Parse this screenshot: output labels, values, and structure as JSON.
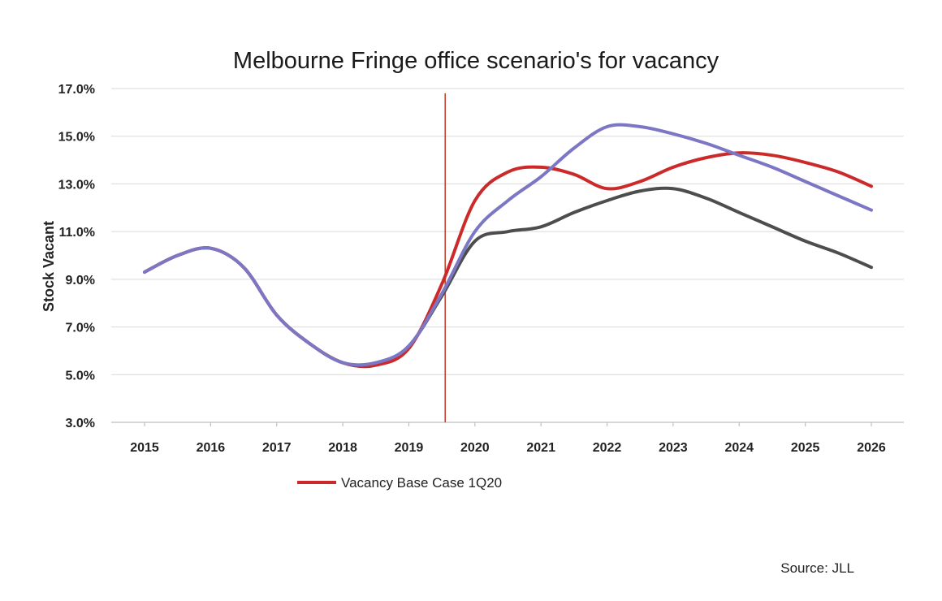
{
  "chart_data": {
    "type": "line",
    "title": "Melbourne Fringe office scenario's for vacancy",
    "xlabel": "",
    "ylabel": "Stock Vacant",
    "categories": [
      "2015",
      "2016",
      "2017",
      "2018",
      "2019",
      "2020",
      "2021",
      "2022",
      "2023",
      "2024",
      "2025",
      "2026"
    ],
    "y_ticks": [
      "3.0%",
      "5.0%",
      "7.0%",
      "9.0%",
      "11.0%",
      "13.0%",
      "15.0%",
      "17.0%"
    ],
    "ylim": [
      3.0,
      17.0
    ],
    "grid": true,
    "vertical_marker_x": 2019.55,
    "series": [
      {
        "name": "Vacancy Base Case 1Q20",
        "color": "#cc2a2a",
        "x": [
          2015,
          2015.5,
          2016,
          2016.5,
          2017,
          2017.5,
          2018,
          2018.5,
          2019,
          2019.5,
          2020,
          2020.5,
          2021,
          2021.5,
          2022,
          2022.5,
          2023,
          2023.5,
          2024,
          2024.5,
          2025,
          2025.5,
          2026
        ],
        "values": [
          9.3,
          10.0,
          10.3,
          9.5,
          7.5,
          6.3,
          5.5,
          5.4,
          6.1,
          8.8,
          12.3,
          13.5,
          13.7,
          13.4,
          12.8,
          13.1,
          13.7,
          14.1,
          14.3,
          14.2,
          13.9,
          13.5,
          12.9
        ]
      },
      {
        "name": "",
        "color": "#4d4d4d",
        "x": [
          2015,
          2015.5,
          2016,
          2016.5,
          2017,
          2017.5,
          2018,
          2018.5,
          2019,
          2019.5,
          2020,
          2020.5,
          2021,
          2021.5,
          2022,
          2022.5,
          2023,
          2023.5,
          2024,
          2024.5,
          2025,
          2025.5,
          2026
        ],
        "values": [
          9.3,
          10.0,
          10.3,
          9.5,
          7.5,
          6.3,
          5.5,
          5.4,
          6.2,
          8.3,
          10.6,
          11.0,
          11.2,
          11.8,
          12.3,
          12.7,
          12.8,
          12.4,
          11.8,
          11.2,
          10.6,
          10.1,
          9.5
        ]
      },
      {
        "name": "",
        "color": "#7b77c4",
        "x": [
          2015,
          2015.5,
          2016,
          2016.5,
          2017,
          2017.5,
          2018,
          2018.5,
          2019,
          2019.5,
          2020,
          2020.5,
          2021,
          2021.5,
          2022,
          2022.5,
          2023,
          2023.5,
          2024,
          2024.5,
          2025,
          2025.5,
          2026
        ],
        "values": [
          9.3,
          10.0,
          10.3,
          9.5,
          7.5,
          6.3,
          5.5,
          5.5,
          6.2,
          8.4,
          11.0,
          12.3,
          13.3,
          14.5,
          15.4,
          15.4,
          15.1,
          14.7,
          14.2,
          13.7,
          13.1,
          12.5,
          11.9
        ]
      }
    ],
    "legend": {
      "placement": "bottom-left",
      "entries": [
        "Vacancy Base Case 1Q20"
      ]
    },
    "source": "Source: JLL"
  }
}
